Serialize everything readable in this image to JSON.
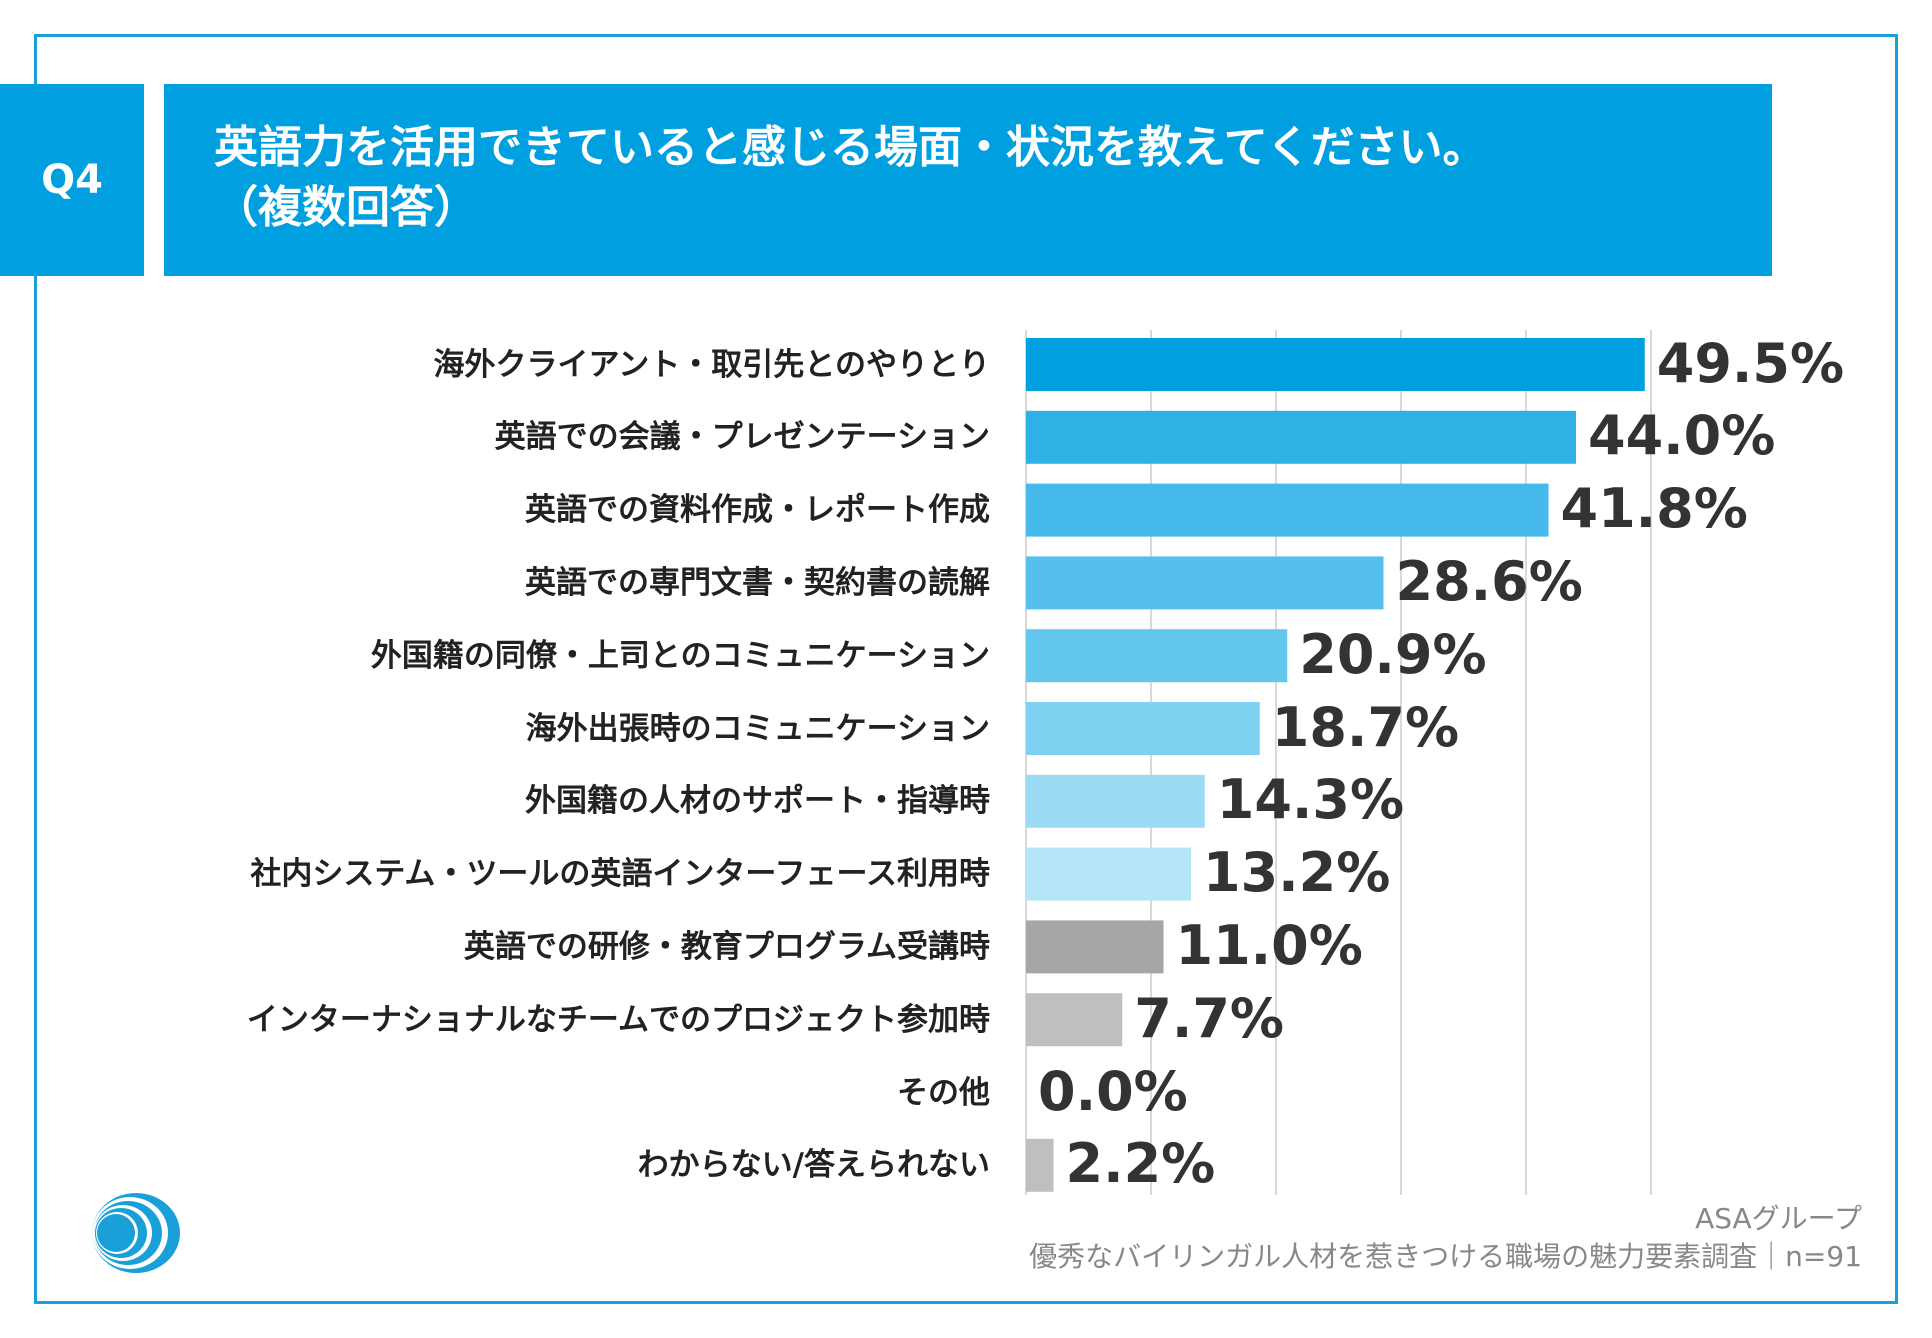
{
  "question": {
    "badge": "Q4",
    "title_line1": "英語力を活用できていると感じる場面・状況を教えてください。",
    "title_line2": "（複数回答）"
  },
  "footer": {
    "org": "ASAグループ",
    "survey": "優秀なバイリンガル人材を惹きつける職場の魅力要素調査｜n=91"
  },
  "colors": {
    "frame": "#1aa0d8",
    "header": "#00a0e0"
  },
  "chart_data": {
    "type": "bar",
    "orientation": "horizontal",
    "title": "英語力を活用できていると感じる場面・状況を教えてください。（複数回答）",
    "xlim": [
      0,
      50
    ],
    "grid": true,
    "categories": [
      "海外クライアント・取引先とのやりとり",
      "英語での会議・プレゼンテーション",
      "英語での資料作成・レポート作成",
      "英語での専門文書・契約書の読解",
      "外国籍の同僚・上司とのコミュニケーション",
      "海外出張時のコミュニケーション",
      "外国籍の人材のサポート・指導時",
      "社内システム・ツールの英語インターフェース利用時",
      "英語での研修・教育プログラム受講時",
      "インターナショナルなチームでのプロジェクト参加時",
      "その他",
      "わからない/答えられない"
    ],
    "values": [
      49.5,
      44.0,
      41.8,
      28.6,
      20.9,
      18.7,
      14.3,
      13.2,
      11.0,
      7.7,
      0.0,
      2.2
    ],
    "value_labels": [
      "49.5%",
      "44.0%",
      "41.8%",
      "28.6%",
      "20.9%",
      "18.7%",
      "14.3%",
      "13.2%",
      "11.0%",
      "7.7%",
      "0.0%",
      "2.2%"
    ],
    "bar_colors": [
      "#00a0e0",
      "#2fb1e6",
      "#45b9e9",
      "#55c0eb",
      "#63c6ed",
      "#7fd1f1",
      "#9bdbf4",
      "#b5e5f7",
      "#a6a6a6",
      "#bfbfbf",
      "#bfbfbf",
      "#bfbfbf"
    ]
  }
}
